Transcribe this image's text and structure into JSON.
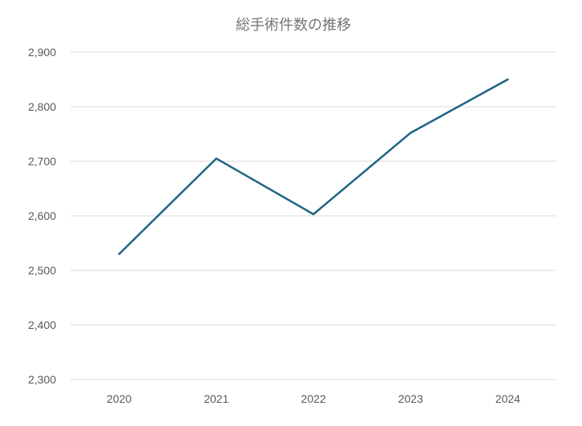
{
  "chart_data": {
    "type": "line",
    "title": "総手術件数の推移",
    "xlabel": "",
    "ylabel": "",
    "categories": [
      "2020",
      "2021",
      "2022",
      "2023",
      "2024"
    ],
    "series": [
      {
        "values": [
          2530,
          2705,
          2603,
          2752,
          2850
        ],
        "color": "#1f6485"
      }
    ],
    "ylim": [
      2300,
      2900
    ],
    "yticks": [
      2300,
      2400,
      2500,
      2600,
      2700,
      2800,
      2900
    ],
    "ytick_labels": [
      "2,300",
      "2,400",
      "2,500",
      "2,600",
      "2,700",
      "2,800",
      "2,900"
    ],
    "grid": true,
    "legend": "none"
  }
}
